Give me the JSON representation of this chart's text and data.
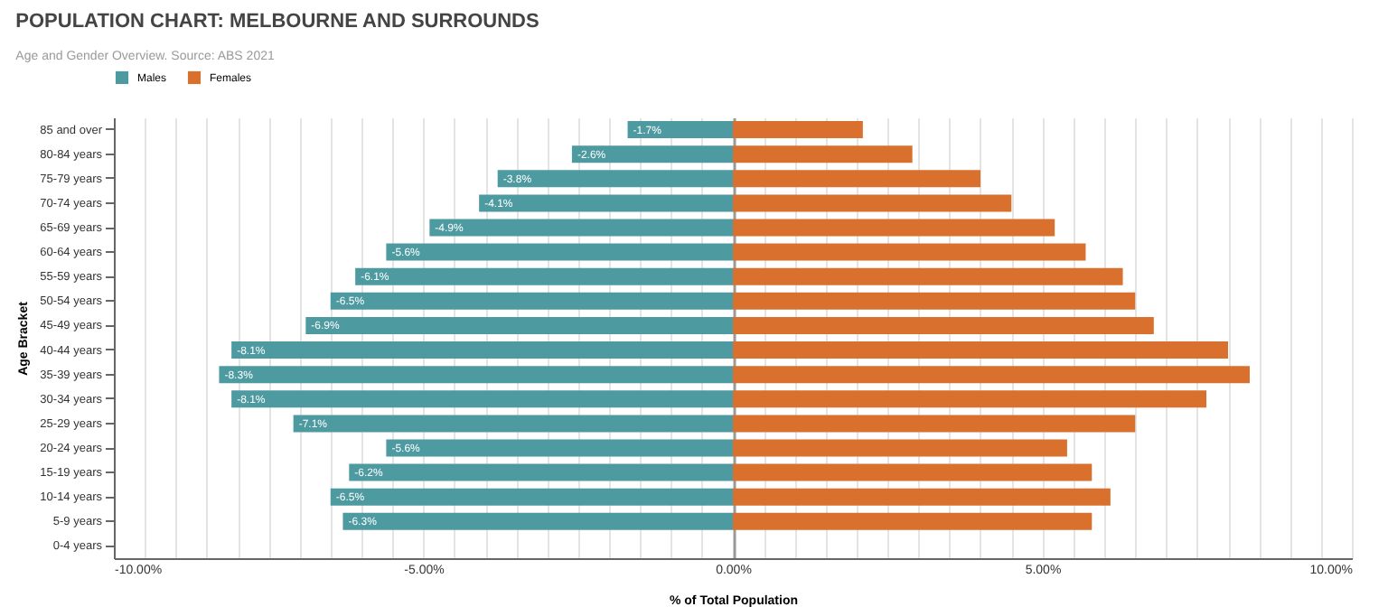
{
  "chart_data": {
    "type": "bar",
    "orientation": "horizontal",
    "title": "POPULATION CHART: MELBOURNE AND SURROUNDS",
    "subtitle": "Age and Gender Overview. Source: ABS 2021",
    "xlabel": "% of Total Population",
    "ylabel": "Age Bracket",
    "categories": [
      "85 and over",
      "80-84 years",
      "75-79 years",
      "70-74 years",
      "65-69 years",
      "60-64 years",
      "55-59 years",
      "50-54 years",
      "45-49 years",
      "40-44 years",
      "35-39 years",
      "30-34 years",
      "25-29 years",
      "20-24 years",
      "15-19 years",
      "10-14 years",
      "5-9 years",
      "0-4 years"
    ],
    "series": [
      {
        "name": "Males",
        "color": "#4e9aa1",
        "values": [
          -1.7,
          -2.6,
          -3.8,
          -4.1,
          -4.9,
          -5.6,
          -6.1,
          -6.5,
          -6.9,
          -8.1,
          -8.3,
          -8.1,
          -7.1,
          -5.6,
          -6.2,
          -6.5,
          -6.3,
          null
        ],
        "value_labels": [
          "-1.7%",
          "-2.6%",
          "-3.8%",
          "-4.1%",
          "-4.9%",
          "-5.6%",
          "-6.1%",
          "-6.5%",
          "-6.9%",
          "-8.1%",
          "-8.3%",
          "-8.1%",
          "-7.1%",
          "-5.6%",
          "-6.2%",
          "-6.5%",
          "-6.3%",
          null
        ]
      },
      {
        "name": "Females",
        "color": "#d9702e",
        "values": [
          2.1,
          2.9,
          4.0,
          4.5,
          5.2,
          5.7,
          6.3,
          6.5,
          6.8,
          8.0,
          8.35,
          7.65,
          6.5,
          5.4,
          5.8,
          6.1,
          5.8,
          null
        ]
      }
    ],
    "xlim": [
      -10,
      10
    ],
    "xticks": [
      {
        "value": -10,
        "label": "-10.00%"
      },
      {
        "value": -9.5,
        "label": null
      },
      {
        "value": -9,
        "label": null
      },
      {
        "value": -8.5,
        "label": null
      },
      {
        "value": -8,
        "label": null
      },
      {
        "value": -7.5,
        "label": null
      },
      {
        "value": -7,
        "label": null
      },
      {
        "value": -6.5,
        "label": null
      },
      {
        "value": -6,
        "label": null
      },
      {
        "value": -5.5,
        "label": null
      },
      {
        "value": -5,
        "label": "-5.00%"
      },
      {
        "value": -4.5,
        "label": null
      },
      {
        "value": -4,
        "label": null
      },
      {
        "value": -3.5,
        "label": null
      },
      {
        "value": -3,
        "label": null
      },
      {
        "value": -2.5,
        "label": null
      },
      {
        "value": -2,
        "label": null
      },
      {
        "value": -1.5,
        "label": null
      },
      {
        "value": -1,
        "label": null
      },
      {
        "value": -0.5,
        "label": null
      },
      {
        "value": 0,
        "label": "0.00%"
      },
      {
        "value": 0.5,
        "label": null
      },
      {
        "value": 1,
        "label": null
      },
      {
        "value": 1.5,
        "label": null
      },
      {
        "value": 2,
        "label": null
      },
      {
        "value": 2.5,
        "label": null
      },
      {
        "value": 3,
        "label": null
      },
      {
        "value": 3.5,
        "label": null
      },
      {
        "value": 4,
        "label": null
      },
      {
        "value": 4.5,
        "label": null
      },
      {
        "value": 5,
        "label": "5.00%"
      },
      {
        "value": 5.5,
        "label": null
      },
      {
        "value": 6,
        "label": null
      },
      {
        "value": 6.5,
        "label": null
      },
      {
        "value": 7,
        "label": null
      },
      {
        "value": 7.5,
        "label": null
      },
      {
        "value": 8,
        "label": null
      },
      {
        "value": 8.5,
        "label": null
      },
      {
        "value": 9,
        "label": null
      },
      {
        "value": 9.5,
        "label": null
      },
      {
        "value": 10,
        "label": "10.00%"
      }
    ],
    "stacked": true,
    "grid": "x",
    "legend": "top"
  }
}
